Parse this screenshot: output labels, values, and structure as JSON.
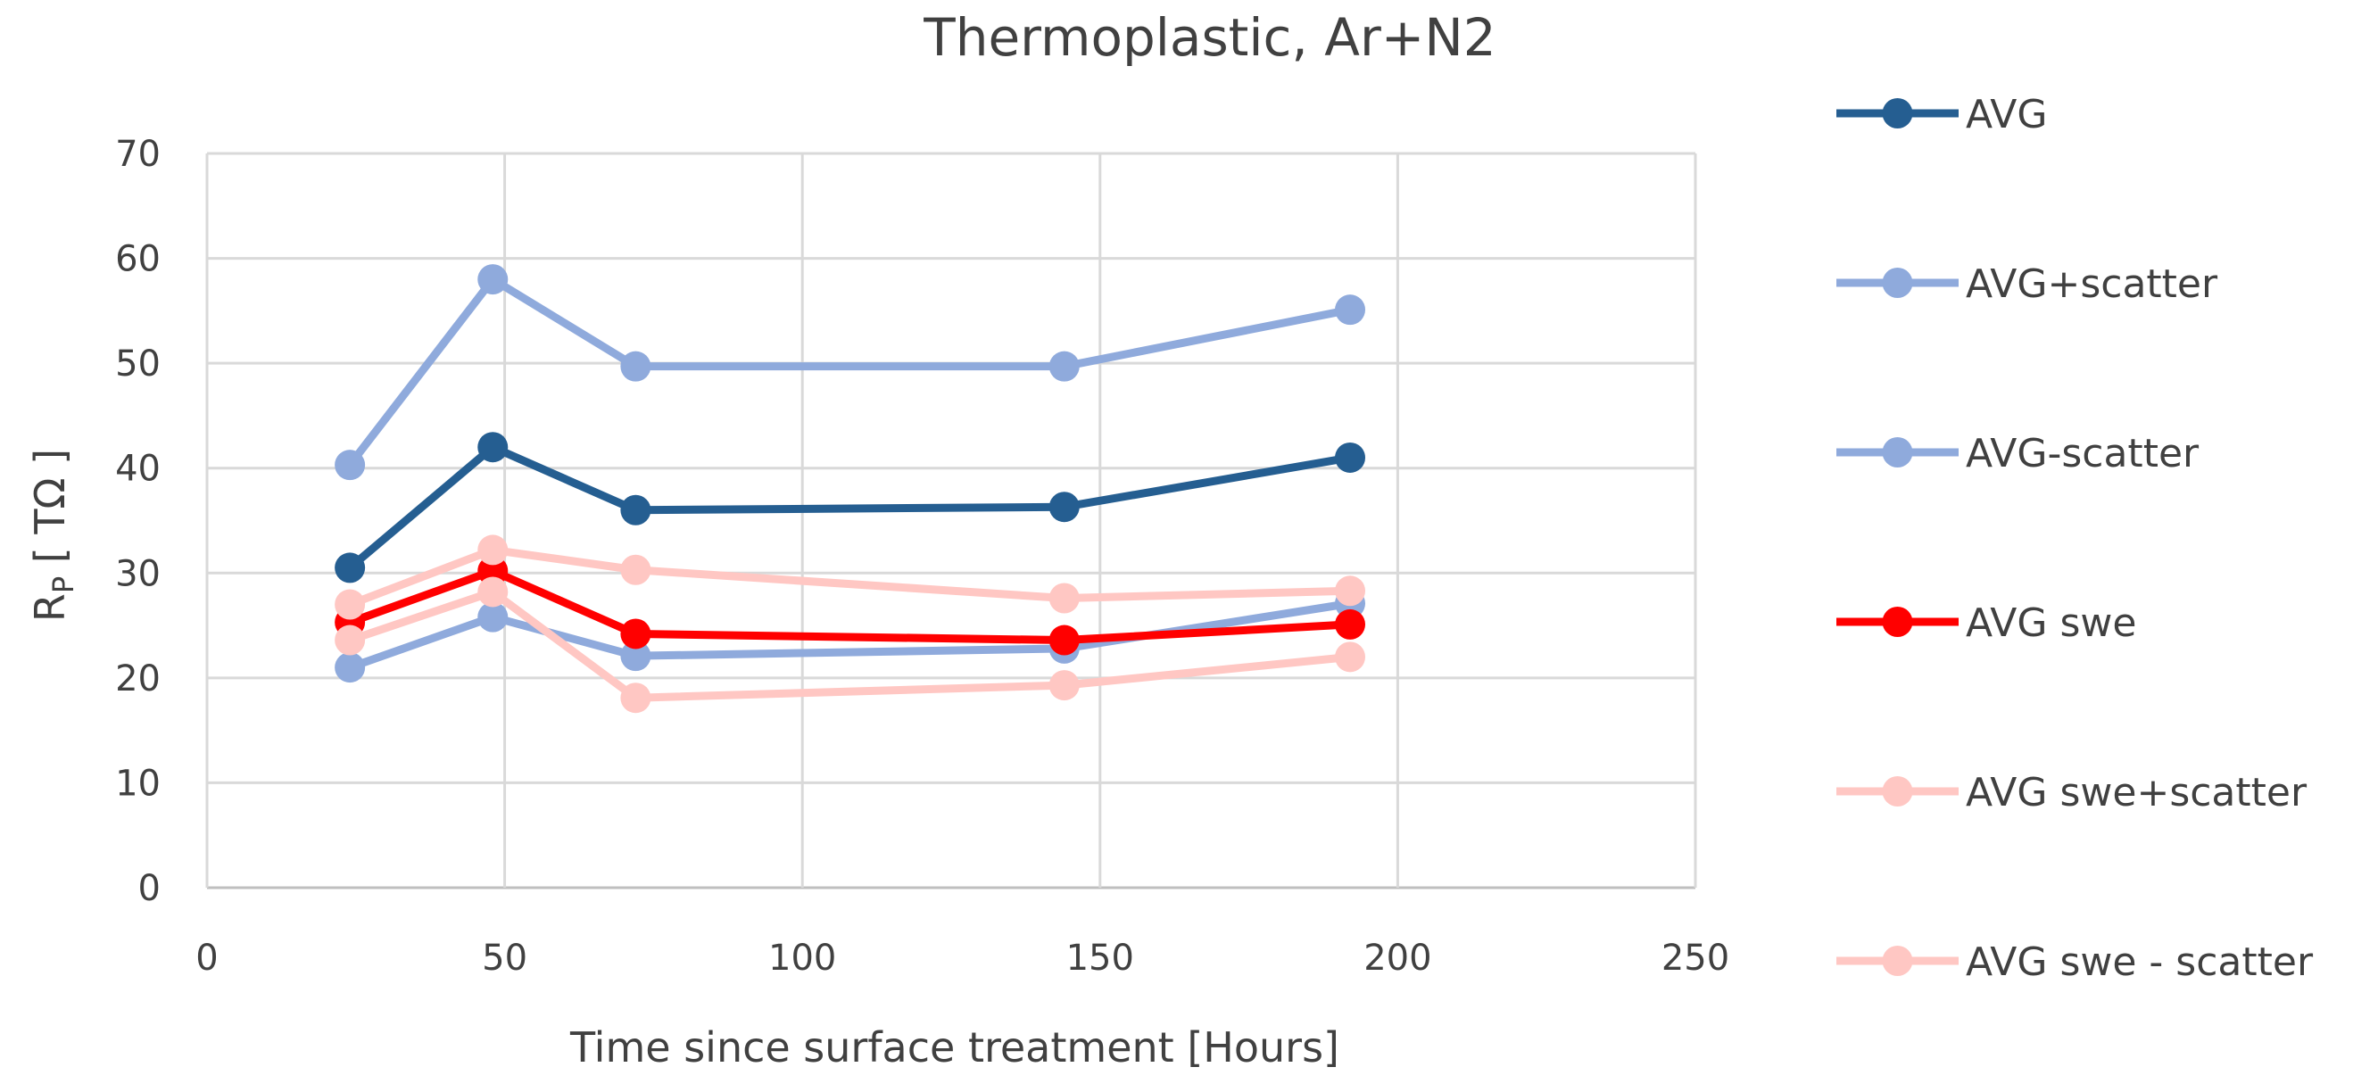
{
  "chart_data": {
    "type": "line",
    "title": "Thermoplastic, Ar+N2",
    "xlabel": "Time since surface treatment [Hours]",
    "ylabel": {
      "main": "R",
      "sub": "P",
      "unit": " [ TΩ ]"
    },
    "xlim": [
      0,
      250
    ],
    "ylim": [
      0,
      70
    ],
    "xticks": [
      0,
      50,
      100,
      150,
      200,
      250
    ],
    "yticks": [
      0,
      10,
      20,
      30,
      40,
      50,
      60,
      70
    ],
    "grid": true,
    "legend_position": "right",
    "series": [
      {
        "name": "AVG",
        "color": "#255e91",
        "x": [
          24,
          48,
          72,
          144,
          192
        ],
        "y": [
          30.5,
          42,
          36,
          36.3,
          41
        ]
      },
      {
        "name": "AVG+scatter",
        "color": "#8faadc",
        "x": [
          24,
          48,
          72,
          144,
          192
        ],
        "y": [
          40.3,
          58,
          49.7,
          49.7,
          55.1
        ]
      },
      {
        "name": "AVG-scatter",
        "color": "#8faadc",
        "x": [
          24,
          48,
          72,
          144,
          192
        ],
        "y": [
          21,
          25.8,
          22.1,
          22.8,
          27.1
        ]
      },
      {
        "name": "AVG swe",
        "color": "#ff0000",
        "x": [
          24,
          48,
          72,
          144,
          192
        ],
        "y": [
          25.3,
          30.2,
          24.2,
          23.6,
          25.1
        ]
      },
      {
        "name": "AVG swe+scatter",
        "color": "#ffc7c3",
        "x": [
          24,
          48,
          72,
          144,
          192
        ],
        "y": [
          27,
          32.2,
          30.3,
          27.6,
          28.3
        ]
      },
      {
        "name": "AVG swe - scatter",
        "color": "#ffc7c3",
        "x": [
          24,
          48,
          72,
          144,
          192
        ],
        "y": [
          23.6,
          28.2,
          18.1,
          19.3,
          22
        ]
      }
    ]
  }
}
